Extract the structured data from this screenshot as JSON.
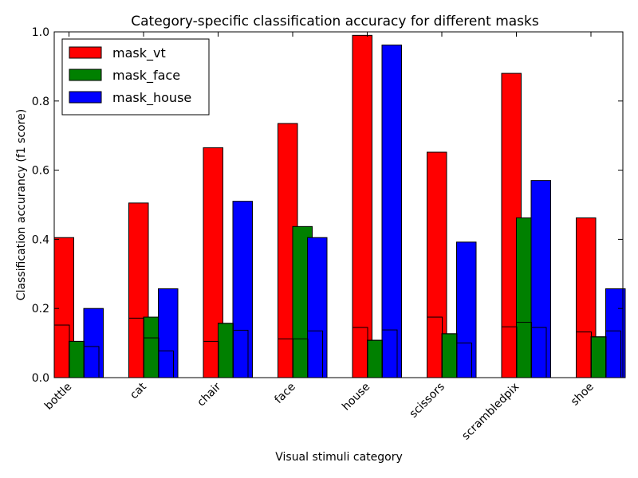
{
  "chart_data": {
    "type": "bar",
    "title": "Category-specific classification accuracy for different masks",
    "xlabel": "Visual stimuli category",
    "ylabel": "Classification accurancy (f1 score)",
    "ylim": [
      0,
      1.0
    ],
    "yticks": [
      "0.0",
      "0.2",
      "0.4",
      "0.6",
      "0.8",
      "1.0"
    ],
    "categories": [
      "bottle",
      "cat",
      "chair",
      "face",
      "house",
      "scissors",
      "scrambledpix",
      "shoe"
    ],
    "series": [
      {
        "name": "mask_vt",
        "color": "#ff0000",
        "values": [
          0.405,
          0.505,
          0.665,
          0.735,
          0.99,
          0.652,
          0.88,
          0.462
        ]
      },
      {
        "name": "mask_face",
        "color": "#008000",
        "values": [
          0.105,
          0.175,
          0.157,
          0.437,
          0.108,
          0.127,
          0.462,
          0.118
        ]
      },
      {
        "name": "mask_house",
        "color": "#0000ff",
        "values": [
          0.2,
          0.257,
          0.51,
          0.405,
          0.962,
          0.392,
          0.57,
          0.257
        ]
      }
    ],
    "chance_values": [
      [
        0.152,
        0.105,
        0.09
      ],
      [
        0.172,
        0.115,
        0.077
      ],
      [
        0.105,
        0.157,
        0.137
      ],
      [
        0.112,
        0.112,
        0.135
      ],
      [
        0.145,
        0.108,
        0.138
      ],
      [
        0.175,
        0.127,
        0.1
      ],
      [
        0.147,
        0.16,
        0.145
      ],
      [
        0.132,
        0.118,
        0.135
      ]
    ],
    "legend_position": "top-left",
    "grid": false
  }
}
